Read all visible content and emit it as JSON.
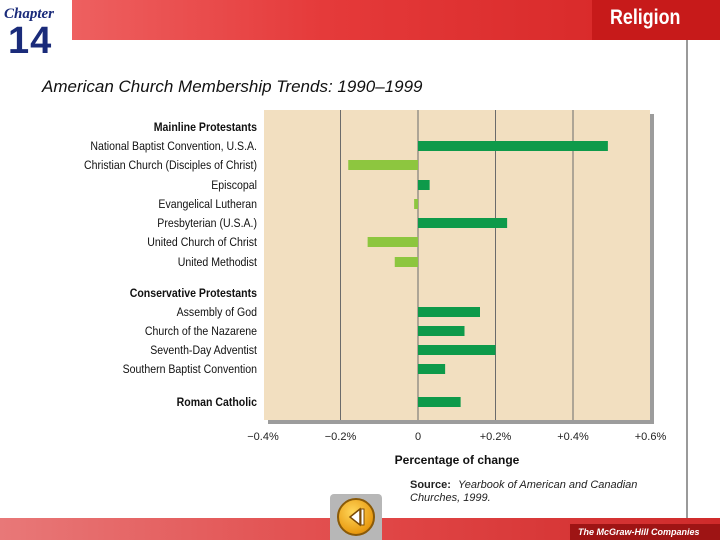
{
  "header": {
    "chapter_word": "Chapter",
    "chapter_number": "14",
    "subject": "Religion"
  },
  "title": "American Church Membership Trends: 1990–1999",
  "source": {
    "label": "Source:",
    "text": "Yearbook of American and Canadian Churches, 1999."
  },
  "publisher": "The McGraw-Hill Companies",
  "colors": {
    "plot_bg": "#f2dfc0",
    "bar_positive": "#0e9a4a",
    "bar_negative": "#8dc63f",
    "header_red": "#e03030",
    "chapter_blue": "#1a2b7a"
  },
  "chart_data": {
    "type": "bar",
    "orientation": "horizontal",
    "title": "American Church Membership Trends: 1990–1999",
    "xlabel": "Percentage of change",
    "xlim": [
      -0.4,
      0.6
    ],
    "ticks": [
      -0.4,
      -0.2,
      0,
      0.2,
      0.4,
      0.6
    ],
    "tick_labels": [
      "−0.4%",
      "−0.2%",
      "0",
      "+0.2%",
      "+0.4%",
      "+0.6%"
    ],
    "rows": [
      {
        "kind": "header",
        "label": "Mainline Protestants"
      },
      {
        "kind": "bar",
        "label": "National Baptist Convention, U.S.A.",
        "value": 0.49
      },
      {
        "kind": "bar",
        "label": "Christian Church (Disciples of Christ)",
        "value": -0.18
      },
      {
        "kind": "bar",
        "label": "Episcopal",
        "value": 0.03
      },
      {
        "kind": "bar",
        "label": "Evangelical Lutheran",
        "value": -0.01
      },
      {
        "kind": "bar",
        "label": "Presbyterian (U.S.A.)",
        "value": 0.23
      },
      {
        "kind": "bar",
        "label": "United Church of Christ",
        "value": -0.13
      },
      {
        "kind": "bar",
        "label": "United Methodist",
        "value": -0.06
      },
      {
        "kind": "header",
        "label": "Conservative Protestants"
      },
      {
        "kind": "bar",
        "label": "Assembly of God",
        "value": 0.16
      },
      {
        "kind": "bar",
        "label": "Church of the Nazarene",
        "value": 0.12
      },
      {
        "kind": "bar",
        "label": "Seventh-Day Adventist",
        "value": 0.2
      },
      {
        "kind": "bar",
        "label": "Southern Baptist Convention",
        "value": 0.07
      },
      {
        "kind": "header",
        "label": "Roman Catholic",
        "value": 0.11
      }
    ]
  }
}
